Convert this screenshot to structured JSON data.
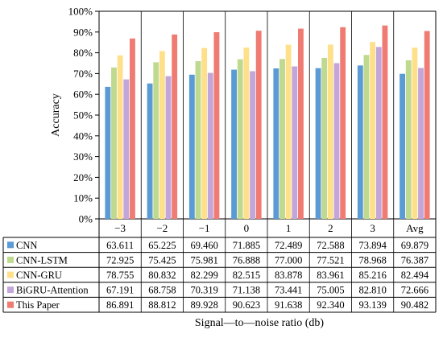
{
  "chart_data": {
    "type": "bar",
    "categories": [
      "−3",
      "−2",
      "−1",
      "0",
      "1",
      "2",
      "3",
      "Avg"
    ],
    "series": [
      {
        "name": "CNN",
        "color": "#5b9bd5",
        "values": [
          63.611,
          65.225,
          69.46,
          71.885,
          72.489,
          72.588,
          73.894,
          69.879
        ]
      },
      {
        "name": "CNN-LSTM",
        "color": "#bfd98f",
        "values": [
          72.925,
          75.425,
          75.981,
          76.888,
          77.0,
          77.521,
          78.968,
          76.387
        ]
      },
      {
        "name": "CNN-GRU",
        "color": "#ffe08a",
        "values": [
          78.755,
          80.832,
          82.299,
          82.515,
          83.878,
          83.961,
          85.216,
          82.494
        ]
      },
      {
        "name": "BiGRU-Attention",
        "color": "#c3a6d9",
        "values": [
          67.191,
          68.758,
          70.319,
          71.138,
          73.441,
          75.005,
          82.81,
          72.666
        ]
      },
      {
        "name": "This Paper",
        "color": "#ef7b72",
        "values": [
          86.891,
          88.812,
          89.928,
          90.623,
          91.638,
          92.34,
          93.139,
          90.482
        ]
      }
    ],
    "value_labels": [
      [
        "63.611",
        "65.225",
        "69.460",
        "71.885",
        "72.489",
        "72.588",
        "73.894",
        "69.879"
      ],
      [
        "72.925",
        "75.425",
        "75.981",
        "76.888",
        "77.000",
        "77.521",
        "78.968",
        "76.387"
      ],
      [
        "78.755",
        "80.832",
        "82.299",
        "82.515",
        "83.878",
        "83.961",
        "85.216",
        "82.494"
      ],
      [
        "67.191",
        "68.758",
        "70.319",
        "71.138",
        "73.441",
        "75.005",
        "82.810",
        "72.666"
      ],
      [
        "86.891",
        "88.812",
        "89.928",
        "90.623",
        "91.638",
        "92.340",
        "93.139",
        "90.482"
      ]
    ],
    "ylabel": "Accuracy",
    "xlabel": "Signal—to—noise ratio (db)",
    "ylim": [
      0,
      100
    ],
    "yticks": [
      0,
      10,
      20,
      30,
      40,
      50,
      60,
      70,
      80,
      90,
      100
    ],
    "ytick_labels": [
      "0%",
      "10%",
      "20%",
      "30%",
      "40%",
      "50%",
      "60%",
      "70%",
      "80%",
      "90%",
      "100%"
    ],
    "grid": false,
    "legend": "data-table"
  }
}
